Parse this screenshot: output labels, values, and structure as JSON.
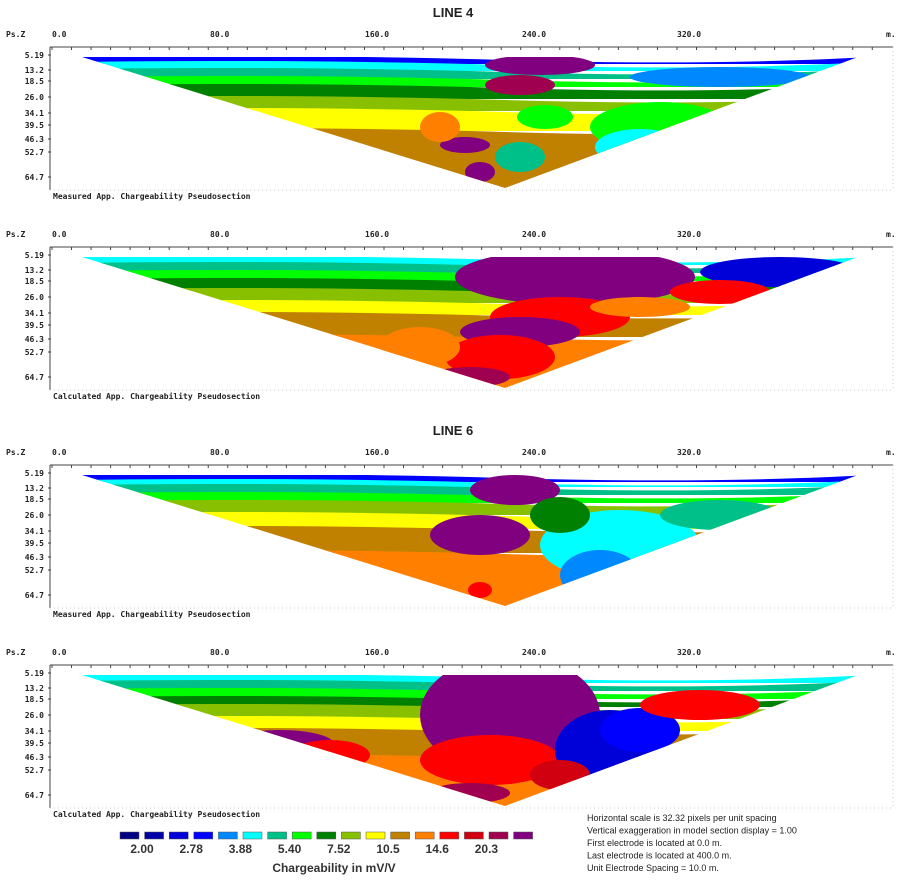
{
  "chart_data": [
    {
      "type": "heatmap",
      "group_title": "LINE 4",
      "title": "Measured App. Chargeability Pseudosection",
      "ylabel": "Ps.Z",
      "xunit": "m.",
      "x_ticks": [
        "0.0",
        "80.0",
        "160.0",
        "240.0",
        "320.0"
      ],
      "y_ticks": [
        "5.19",
        "13.2",
        "18.5",
        "26.0",
        "34.1",
        "39.5",
        "46.3",
        "52.7",
        "64.7"
      ]
    },
    {
      "type": "heatmap",
      "title": "Calculated App. Chargeability Pseudosection",
      "ylabel": "Ps.Z",
      "xunit": "m.",
      "x_ticks": [
        "0.0",
        "80.0",
        "160.0",
        "240.0",
        "320.0"
      ],
      "y_ticks": [
        "5.19",
        "13.2",
        "18.5",
        "26.0",
        "34.1",
        "39.5",
        "46.3",
        "52.7",
        "64.7"
      ]
    },
    {
      "type": "heatmap",
      "group_title": "LINE 6",
      "title": "Measured App. Chargeability Pseudosection",
      "ylabel": "Ps.Z",
      "xunit": "m.",
      "x_ticks": [
        "0.0",
        "80.0",
        "160.0",
        "240.0",
        "320.0"
      ],
      "y_ticks": [
        "5.19",
        "13.2",
        "18.5",
        "26.0",
        "34.1",
        "39.5",
        "46.3",
        "52.7",
        "64.7"
      ]
    },
    {
      "type": "heatmap",
      "title": "Calculated App. Chargeability Pseudosection",
      "ylabel": "Ps.Z",
      "xunit": "m.",
      "x_ticks": [
        "0.0",
        "80.0",
        "160.0",
        "240.0",
        "320.0"
      ],
      "y_ticks": [
        "5.19",
        "13.2",
        "18.5",
        "26.0",
        "34.1",
        "39.5",
        "46.3",
        "52.7",
        "64.7"
      ]
    }
  ],
  "legend": {
    "title": "Chargeability in mV/V",
    "colors": [
      "#000080",
      "#0000a8",
      "#0000d8",
      "#0000ff",
      "#0088ff",
      "#00ffff",
      "#00c08a",
      "#00ff00",
      "#008000",
      "#88c000",
      "#ffff00",
      "#c08000",
      "#ff8000",
      "#ff0000",
      "#d00010",
      "#a00050",
      "#800080"
    ],
    "labels": [
      "2.00",
      "2.78",
      "3.88",
      "5.40",
      "7.52",
      "10.5",
      "14.6",
      "20.3"
    ]
  },
  "info": [
    "Horizontal scale is 32.32 pixels per unit spacing",
    "Vertical exaggeration in model section display = 1.00",
    "First electrode is located at 0.0  m.",
    "Last electrode is located at 400.0 m.",
    "Unit Electrode Spacing = 10.0 m."
  ]
}
